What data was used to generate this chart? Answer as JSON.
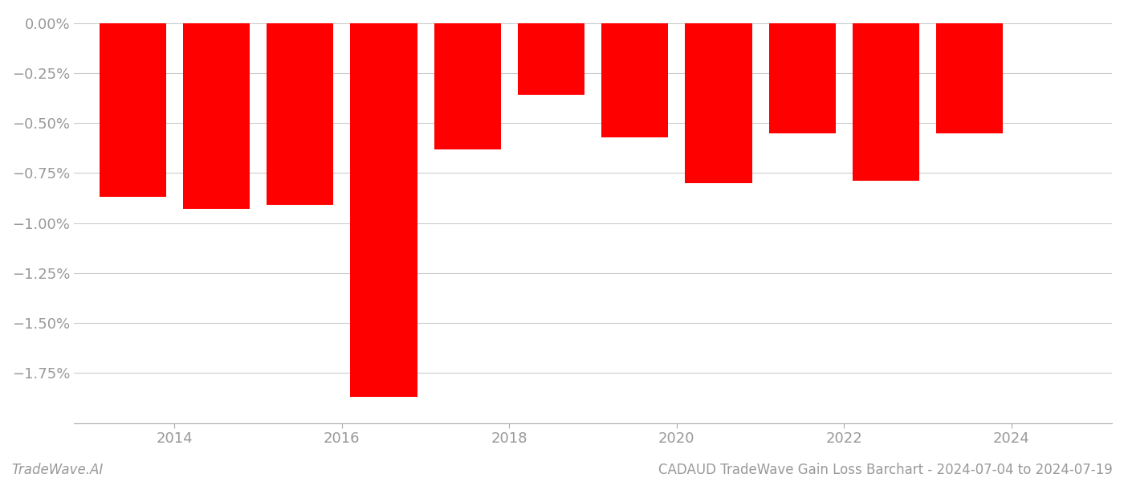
{
  "bar_centers": [
    2013.5,
    2014.5,
    2015.5,
    2016.5,
    2017.5,
    2018.5,
    2019.5,
    2020.5,
    2021.5,
    2022.5,
    2023.5
  ],
  "values": [
    -0.0087,
    -0.0093,
    -0.0091,
    -0.0187,
    -0.0063,
    -0.0036,
    -0.0057,
    -0.008,
    -0.0055,
    -0.0079,
    -0.0055
  ],
  "bar_color": "#ff0000",
  "background_color": "#ffffff",
  "grid_color": "#cccccc",
  "tick_color": "#999999",
  "xlim_min": 2012.8,
  "xlim_max": 2025.2,
  "ylim_min": -0.02,
  "ylim_max": 0.00055,
  "xticks": [
    2014,
    2016,
    2018,
    2020,
    2022,
    2024
  ],
  "xtick_labels": [
    "2014",
    "2016",
    "2018",
    "2020",
    "2022",
    "2024"
  ],
  "yticks": [
    0.0,
    -0.0025,
    -0.005,
    -0.0075,
    -0.01,
    -0.0125,
    -0.015,
    -0.0175
  ],
  "ytick_labels": [
    "0.00%",
    "−0.25%",
    "−0.50%",
    "−0.75%",
    "−1.00%",
    "−1.25%",
    "−1.50%",
    "−1.75%"
  ],
  "footer_left": "TradeWave.AI",
  "footer_right": "CADAUD TradeWave Gain Loss Barchart - 2024-07-04 to 2024-07-19",
  "bar_width": 0.8
}
